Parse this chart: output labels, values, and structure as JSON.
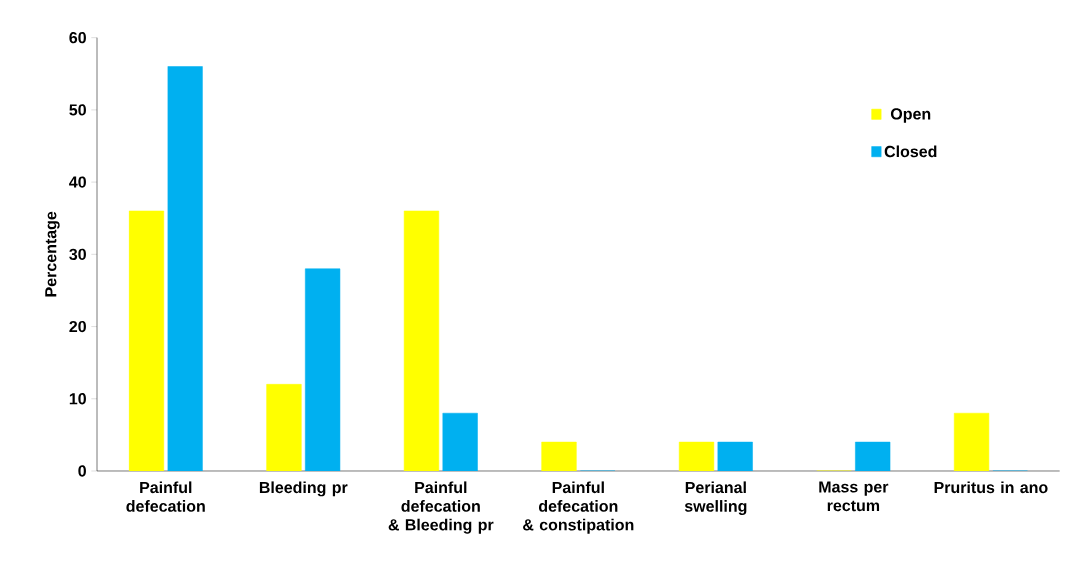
{
  "chart_data": {
    "type": "bar",
    "ylabel": "Percentage",
    "categories": [
      "Painful defecation",
      "Bleeding pr",
      "Painful defecation & Bleeding pr",
      "Painful defecation & constipation",
      "Perianal swelling",
      "Mass per rectum",
      "Pruritus in ano"
    ],
    "series": [
      {
        "name": "Open",
        "color": "#ffff00",
        "values": [
          36,
          12,
          36,
          4,
          4,
          0,
          8
        ]
      },
      {
        "name": "Closed",
        "color": "#00b0f0",
        "values": [
          56,
          28,
          8,
          0,
          4,
          4,
          0
        ]
      }
    ],
    "ylim": [
      0,
      60
    ],
    "yticks": [
      0,
      10,
      20,
      30,
      40,
      50,
      60
    ],
    "legend": "top right"
  }
}
